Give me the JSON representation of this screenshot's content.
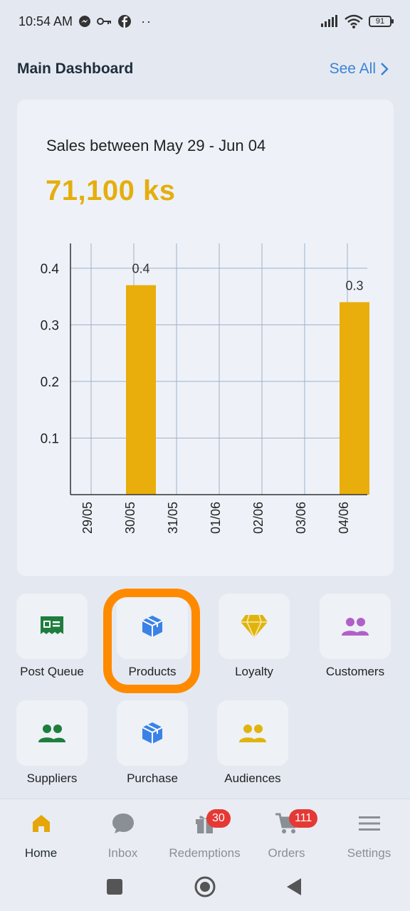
{
  "status_bar": {
    "time": "10:54 AM",
    "battery": "91"
  },
  "header": {
    "title": "Main Dashboard",
    "see_all": "See All"
  },
  "card": {
    "sales_label": "Sales between May 29 - Jun 04",
    "sales_total": "71,100 ks"
  },
  "chart_data": {
    "type": "bar",
    "title": "",
    "xlabel": "",
    "ylabel": "",
    "categories": [
      "29/05",
      "30/05",
      "31/05",
      "01/06",
      "02/06",
      "03/06",
      "04/06"
    ],
    "values": [
      0,
      0.37,
      0,
      0,
      0,
      0,
      0.34
    ],
    "data_labels": [
      "",
      "0.4",
      "",
      "",
      "",
      "",
      "0.3"
    ],
    "y_ticks": [
      "0.1",
      "0.2",
      "0.3",
      "0.4"
    ],
    "ylim": [
      0,
      0.44
    ],
    "grid": true,
    "color": "#e9ad0c"
  },
  "tiles": [
    {
      "label": "Post Queue",
      "icon": "receipt-icon",
      "color": "#1e7e3e"
    },
    {
      "label": "Products",
      "icon": "box-icon",
      "color": "#3b82e6"
    },
    {
      "label": "Loyalty",
      "icon": "diamond-icon",
      "color": "#e0b40c"
    },
    {
      "label": "Customers",
      "icon": "users-icon",
      "color": "#b060c8"
    },
    {
      "label": "Suppliers",
      "icon": "users-icon",
      "color": "#1e7e3e"
    },
    {
      "label": "Purchase",
      "icon": "box-icon",
      "color": "#3b82e6"
    },
    {
      "label": "Audiences",
      "icon": "users-icon",
      "color": "#e0b40c"
    }
  ],
  "nav": [
    {
      "label": "Home",
      "icon": "home-icon",
      "active": true
    },
    {
      "label": "Inbox",
      "icon": "chat-icon",
      "active": false
    },
    {
      "label": "Redemptions",
      "icon": "gift-icon",
      "badge": "30",
      "active": false
    },
    {
      "label": "Orders",
      "icon": "cart-icon",
      "badge": "111",
      "active": false
    },
    {
      "label": "Settings",
      "icon": "menu-icon",
      "active": false
    }
  ]
}
